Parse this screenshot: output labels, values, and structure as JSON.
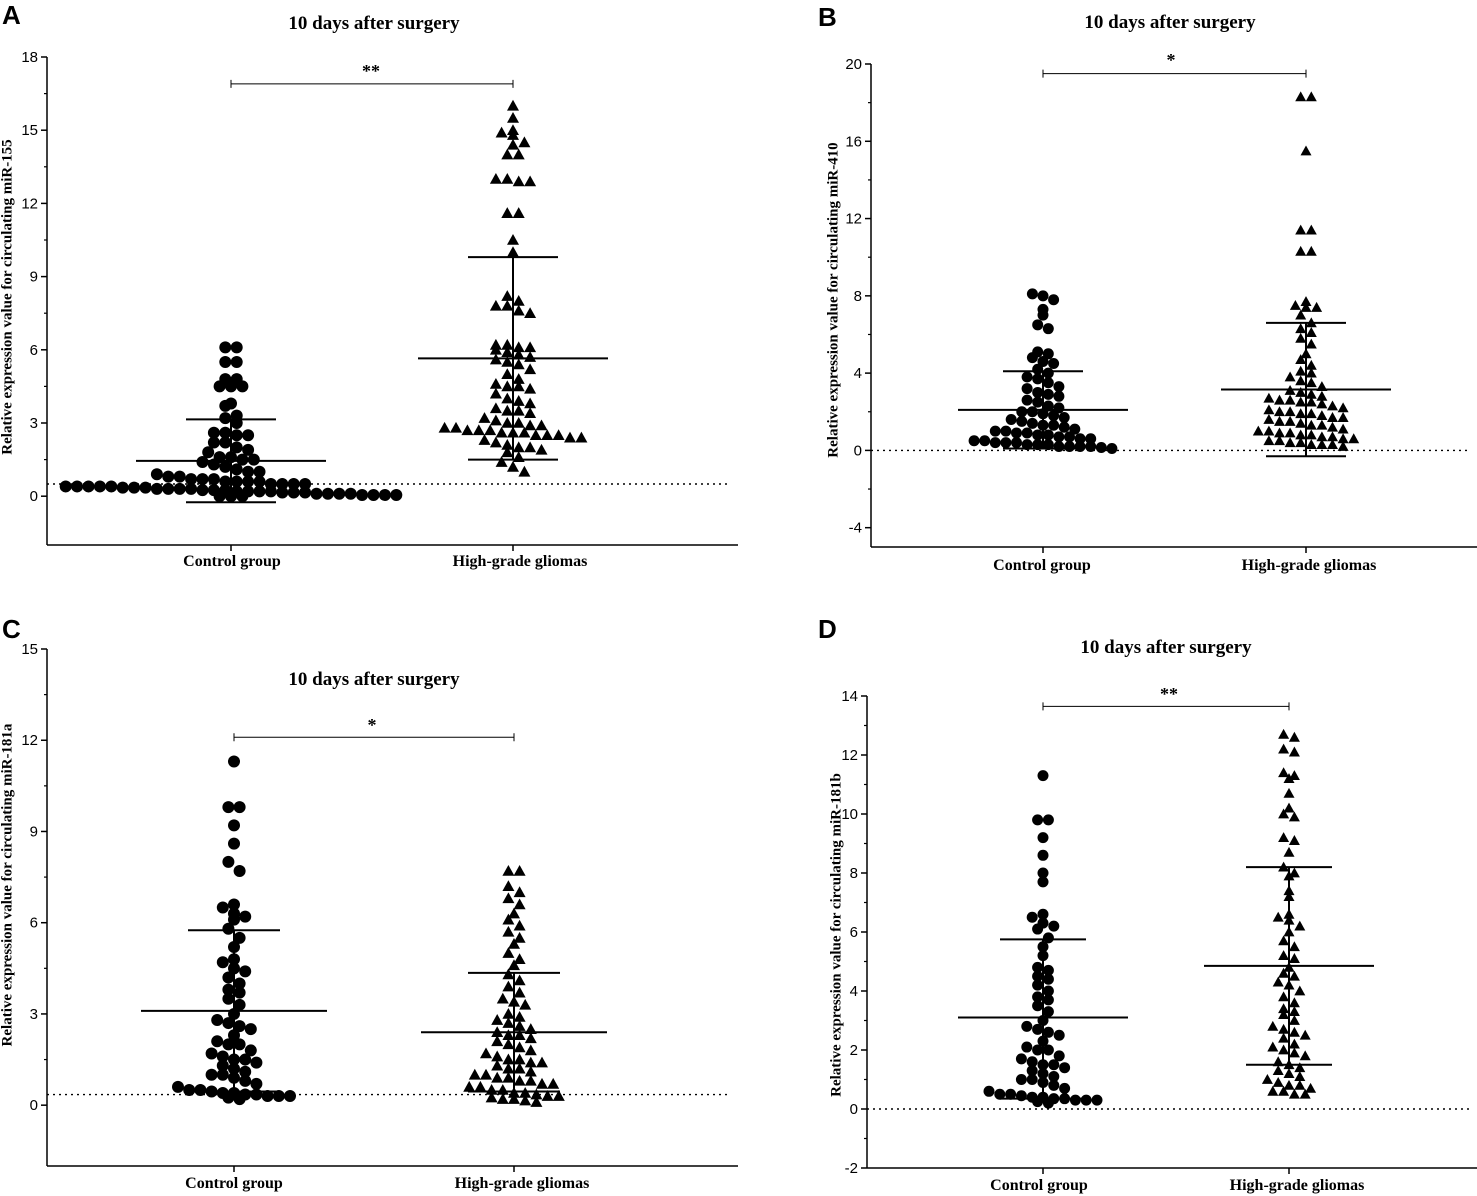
{
  "chart_data": [
    {
      "panel_label": "A",
      "type": "scatter",
      "title": "10 days after surgery",
      "ylabel": "Relative expression value for circulating miR-155",
      "categories": [
        "Control group",
        "High-grade gliomas"
      ],
      "ylim": [
        -2,
        18
      ],
      "yticks": [
        0,
        3,
        6,
        9,
        12,
        15,
        18
      ],
      "yticklabels": [
        "0",
        "3",
        "6",
        "9",
        "12",
        "15",
        "18"
      ],
      "reference_line": 0.5,
      "significance": "**",
      "bracket_y": 16.9,
      "series": [
        {
          "name": "Control group",
          "marker": "circle",
          "mean": 1.45,
          "sd_upper": 3.15,
          "sd_lower": -0.25,
          "values": [
            6.1,
            6.1,
            5.5,
            5.5,
            4.8,
            4.8,
            4.5,
            4.5,
            4.5,
            3.8,
            3.7,
            3.3,
            3.2,
            3.0,
            2.6,
            2.6,
            2.5,
            2.5,
            2.2,
            2.2,
            2.0,
            1.9,
            1.8,
            1.6,
            1.6,
            1.5,
            1.5,
            1.4,
            1.3,
            1.2,
            1.1,
            1.0,
            1.0,
            0.9,
            0.8,
            0.8,
            0.7,
            0.7,
            0.7,
            0.6,
            0.6,
            0.6,
            0.6,
            0.5,
            0.5,
            0.5,
            0.5,
            0.4,
            0.4,
            0.4,
            0.4,
            0.4,
            0.35,
            0.35,
            0.35,
            0.3,
            0.3,
            0.3,
            0.3,
            0.25,
            0.25,
            0.25,
            0.2,
            0.2,
            0.2,
            0.2,
            0.15,
            0.15,
            0.15,
            0.1,
            0.1,
            0.1,
            0.1,
            0.05,
            0.05,
            0.05,
            0.05,
            0.0,
            0.0,
            0.0
          ]
        },
        {
          "name": "High-grade gliomas",
          "marker": "triangle",
          "mean": 5.65,
          "sd_upper": 9.8,
          "sd_lower": 1.5,
          "values": [
            16.0,
            15.5,
            15.0,
            14.9,
            14.8,
            14.5,
            14.4,
            14.0,
            14.0,
            13.0,
            13.0,
            12.9,
            12.9,
            11.6,
            11.6,
            10.5,
            10.0,
            8.2,
            8.0,
            7.8,
            7.8,
            7.6,
            7.5,
            6.2,
            6.2,
            6.1,
            6.1,
            6.0,
            5.9,
            5.8,
            5.7,
            5.6,
            5.5,
            5.4,
            5.2,
            5.0,
            4.8,
            4.6,
            4.5,
            4.5,
            4.4,
            4.2,
            4.0,
            3.9,
            3.8,
            3.6,
            3.5,
            3.5,
            3.4,
            3.2,
            3.1,
            3.0,
            3.0,
            2.9,
            2.9,
            2.8,
            2.8,
            2.7,
            2.7,
            2.7,
            2.6,
            2.6,
            2.6,
            2.5,
            2.5,
            2.5,
            2.4,
            2.4,
            2.3,
            2.2,
            2.1,
            2.0,
            2.0,
            1.9,
            1.8,
            1.6,
            1.4,
            1.2,
            1.0
          ]
        }
      ]
    },
    {
      "panel_label": "B",
      "type": "scatter",
      "title": "10 days after surgery",
      "ylabel": "Relative expression value for circulating miR-410",
      "categories": [
        "Control group",
        "High-grade gliomas"
      ],
      "ylim": [
        -5,
        20
      ],
      "yticks": [
        -4,
        0,
        4,
        8,
        12,
        16,
        20
      ],
      "yticklabels": [
        "-4",
        "0",
        "4",
        "8",
        "12",
        "16",
        "20"
      ],
      "reference_line": 0,
      "significance": "*",
      "bracket_y": 19.5,
      "series": [
        {
          "name": "Control group",
          "marker": "circle",
          "mean": 2.1,
          "sd_upper": 4.1,
          "sd_lower": 0.1,
          "values": [
            8.1,
            8.0,
            7.8,
            7.3,
            7.0,
            6.5,
            6.3,
            5.1,
            5.0,
            4.8,
            4.6,
            4.5,
            4.2,
            4.0,
            3.8,
            3.7,
            3.5,
            3.3,
            3.2,
            3.0,
            2.9,
            2.8,
            2.6,
            2.5,
            2.3,
            2.2,
            2.0,
            2.0,
            1.9,
            1.8,
            1.7,
            1.6,
            1.5,
            1.4,
            1.3,
            1.3,
            1.2,
            1.1,
            1.0,
            1.0,
            0.9,
            0.9,
            0.8,
            0.8,
            0.7,
            0.7,
            0.6,
            0.6,
            0.5,
            0.5,
            0.4,
            0.4,
            0.4,
            0.3,
            0.3,
            0.3,
            0.2,
            0.2,
            0.2,
            0.2,
            0.15,
            0.1
          ]
        },
        {
          "name": "High-grade gliomas",
          "marker": "triangle",
          "mean": 3.15,
          "sd_upper": 6.6,
          "sd_lower": -0.3,
          "values": [
            18.3,
            18.3,
            15.5,
            11.4,
            11.4,
            10.3,
            10.3,
            7.7,
            7.5,
            7.4,
            7.4,
            7.0,
            6.6,
            6.3,
            6.1,
            5.8,
            5.5,
            5.0,
            4.7,
            4.4,
            4.1,
            4.0,
            3.8,
            3.6,
            3.5,
            3.3,
            3.1,
            3.0,
            2.9,
            2.8,
            2.7,
            2.6,
            2.6,
            2.5,
            2.5,
            2.4,
            2.3,
            2.2,
            2.1,
            2.0,
            2.0,
            1.9,
            1.9,
            1.8,
            1.7,
            1.7,
            1.6,
            1.5,
            1.5,
            1.4,
            1.3,
            1.3,
            1.2,
            1.1,
            1.0,
            1.0,
            0.9,
            0.9,
            0.8,
            0.8,
            0.7,
            0.7,
            0.6,
            0.6,
            0.5,
            0.5,
            0.4,
            0.4,
            0.3,
            0.3,
            0.3,
            0.2
          ]
        }
      ]
    },
    {
      "panel_label": "C",
      "type": "scatter",
      "title": "10 days after surgery",
      "ylabel": "Relative expression value for circulating miR-181a",
      "categories": [
        "Control group",
        "High-grade gliomas"
      ],
      "ylim": [
        -2,
        15
      ],
      "yticks": [
        0,
        3,
        6,
        9,
        12,
        15
      ],
      "yticklabels": [
        "0",
        "3",
        "6",
        "9",
        "12",
        "15"
      ],
      "reference_line": 0.35,
      "significance": "*",
      "bracket_y": 12.1,
      "series": [
        {
          "name": "Control group",
          "marker": "circle",
          "mean": 3.1,
          "sd_upper": 5.75,
          "sd_lower": 0.45,
          "values": [
            11.3,
            9.8,
            9.8,
            9.2,
            8.6,
            8.0,
            7.7,
            6.6,
            6.5,
            6.3,
            6.2,
            6.1,
            5.8,
            5.5,
            5.2,
            4.8,
            4.7,
            4.5,
            4.4,
            4.2,
            4.0,
            3.8,
            3.7,
            3.5,
            3.3,
            3.0,
            2.8,
            2.7,
            2.6,
            2.5,
            2.3,
            2.1,
            2.0,
            2.0,
            1.8,
            1.7,
            1.6,
            1.5,
            1.5,
            1.4,
            1.3,
            1.2,
            1.1,
            1.0,
            1.0,
            0.9,
            0.8,
            0.7,
            0.6,
            0.5,
            0.5,
            0.45,
            0.4,
            0.4,
            0.35,
            0.35,
            0.3,
            0.3,
            0.3,
            0.25,
            0.2
          ]
        },
        {
          "name": "High-grade gliomas",
          "marker": "triangle",
          "mean": 2.4,
          "sd_upper": 4.35,
          "sd_lower": 0.45,
          "values": [
            7.7,
            7.7,
            7.2,
            7.0,
            6.8,
            6.6,
            6.3,
            6.1,
            5.9,
            5.7,
            5.5,
            5.3,
            5.0,
            4.8,
            4.6,
            4.3,
            4.1,
            3.9,
            3.7,
            3.5,
            3.4,
            3.3,
            3.0,
            2.9,
            2.8,
            2.7,
            2.6,
            2.5,
            2.4,
            2.3,
            2.3,
            2.2,
            2.1,
            2.0,
            1.9,
            1.8,
            1.7,
            1.6,
            1.5,
            1.5,
            1.4,
            1.4,
            1.3,
            1.2,
            1.2,
            1.1,
            1.0,
            1.0,
            0.9,
            0.9,
            0.8,
            0.8,
            0.7,
            0.7,
            0.6,
            0.6,
            0.5,
            0.5,
            0.4,
            0.4,
            0.35,
            0.3,
            0.3,
            0.25,
            0.2,
            0.2,
            0.15,
            0.1
          ]
        }
      ]
    },
    {
      "panel_label": "D",
      "type": "scatter",
      "title": "10 days after surgery",
      "ylabel": "Relative expression value for circulating miR-181b",
      "categories": [
        "Control group",
        "High-grade gliomas"
      ],
      "ylim": [
        -2,
        14
      ],
      "yticks": [
        -2,
        0,
        2,
        4,
        6,
        8,
        10,
        12,
        14
      ],
      "yticklabels": [
        "-2",
        "0",
        "2",
        "4",
        "6",
        "8",
        "10",
        "12",
        "14"
      ],
      "reference_line": 0,
      "significance": "**",
      "bracket_y": 13.65,
      "series": [
        {
          "name": "Control group",
          "marker": "circle",
          "mean": 3.1,
          "sd_upper": 5.75,
          "sd_lower": 0.35,
          "values": [
            11.3,
            9.8,
            9.8,
            9.2,
            8.6,
            8.0,
            7.7,
            6.6,
            6.5,
            6.3,
            6.2,
            6.1,
            5.8,
            5.5,
            5.2,
            4.8,
            4.7,
            4.5,
            4.4,
            4.2,
            4.0,
            3.8,
            3.7,
            3.5,
            3.3,
            3.0,
            2.8,
            2.7,
            2.6,
            2.5,
            2.3,
            2.1,
            2.0,
            2.0,
            1.8,
            1.7,
            1.6,
            1.5,
            1.5,
            1.4,
            1.3,
            1.2,
            1.1,
            1.0,
            1.0,
            0.9,
            0.8,
            0.7,
            0.6,
            0.5,
            0.5,
            0.45,
            0.4,
            0.4,
            0.35,
            0.35,
            0.3,
            0.3,
            0.3,
            0.25,
            0.2
          ]
        },
        {
          "name": "High-grade gliomas",
          "marker": "triangle",
          "mean": 4.85,
          "sd_upper": 8.2,
          "sd_lower": 1.5,
          "values": [
            12.7,
            12.6,
            12.2,
            12.1,
            11.4,
            11.3,
            11.2,
            10.7,
            10.2,
            10.0,
            9.9,
            9.2,
            9.1,
            8.7,
            8.2,
            8.0,
            7.9,
            7.4,
            7.2,
            6.6,
            6.5,
            6.4,
            6.2,
            6.0,
            5.7,
            5.5,
            5.2,
            5.1,
            4.8,
            4.6,
            4.5,
            4.3,
            4.2,
            4.0,
            3.8,
            3.6,
            3.4,
            3.3,
            3.2,
            3.0,
            2.8,
            2.7,
            2.6,
            2.5,
            2.4,
            2.2,
            2.1,
            2.0,
            1.9,
            1.8,
            1.6,
            1.5,
            1.4,
            1.3,
            1.2,
            1.1,
            1.0,
            0.9,
            0.8,
            0.8,
            0.7,
            0.6,
            0.6,
            0.5,
            0.5
          ]
        }
      ]
    }
  ]
}
